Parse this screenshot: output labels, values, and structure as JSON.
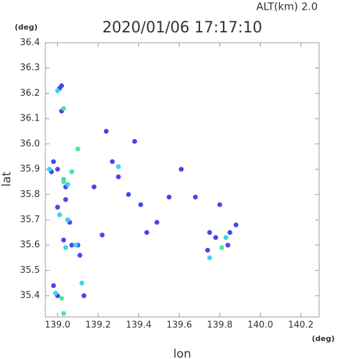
{
  "chart_data": {
    "type": "scatter",
    "title": "2020/01/06 17:17:10",
    "subtitle": "ALT(km) 2.0",
    "x_label": "lon",
    "y_label": "lat",
    "x_unit": "(deg)",
    "y_unit": "(deg)",
    "xlim": [
      138.94,
      140.29
    ],
    "ylim": [
      35.316,
      36.4
    ],
    "xticks": [
      {
        "value": 139,
        "label": "139.0"
      },
      139.2,
      139.4,
      139.6,
      139.8,
      {
        "value": 140,
        "label": "140.0"
      },
      140.2
    ],
    "yticks": [
      35.4,
      35.5,
      35.6,
      35.7,
      35.8,
      35.9,
      {
        "value": 36,
        "label": "36.0"
      },
      36.1,
      36.2,
      36.3,
      36.4
    ],
    "series": [
      {
        "color": "#4646f0",
        "x": [
          139.01,
          139.02,
          139.02,
          139.1,
          138.98,
          139.07,
          139.04,
          139.04,
          139.0,
          139.06,
          139.1,
          139.07,
          139.11,
          138.98,
          139.0,
          139.13,
          139.22,
          139.27,
          139.3,
          139.18,
          139.35,
          139.41,
          139.44,
          139.49,
          139.55,
          139.61,
          139.68,
          139.8,
          139.75,
          139.78,
          139.85,
          139.88,
          139.84,
          139.74,
          139.24,
          139.38,
          139.03,
          139.0,
          138.97
        ],
        "values": [
          36.22,
          36.23,
          36.13,
          35.98,
          35.93,
          35.89,
          35.83,
          35.78,
          35.75,
          35.69,
          35.6,
          35.6,
          35.56,
          35.44,
          35.4,
          35.4,
          35.64,
          35.93,
          35.87,
          35.83,
          35.8,
          35.76,
          35.65,
          35.69,
          35.79,
          35.9,
          35.79,
          35.76,
          35.65,
          35.63,
          35.65,
          35.68,
          35.6,
          35.58,
          36.05,
          36.01,
          35.62,
          35.9,
          35.89
        ]
      },
      {
        "color": "#3cd2f0",
        "x": [
          139.0,
          138.96,
          139.05,
          139.01,
          139.04,
          139.09,
          139.3,
          139.12,
          138.99,
          139.75,
          139.83,
          139.03,
          139.05
        ],
        "values": [
          36.21,
          35.9,
          35.84,
          35.72,
          35.59,
          35.6,
          35.91,
          35.45,
          35.41,
          35.55,
          35.63,
          35.86,
          35.7
        ]
      },
      {
        "color": "#46f08c",
        "x": [
          139.03,
          139.07,
          139.03,
          139.02,
          139.1,
          139.81,
          139.03
        ],
        "values": [
          36.14,
          35.89,
          35.85,
          35.39,
          35.98,
          35.59,
          35.33
        ]
      }
    ]
  }
}
